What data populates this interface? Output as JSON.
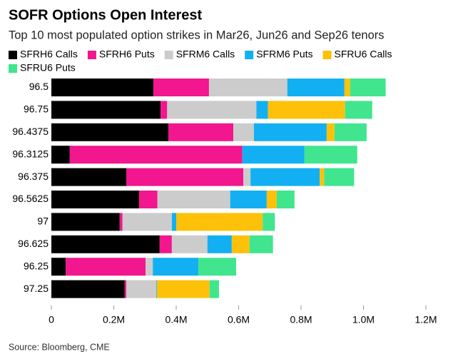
{
  "chart_data": {
    "type": "stacked-bar-horizontal",
    "title": "SOFR Options Open Interest",
    "subtitle": "Top 10 most populated option strikes in Mar26, Jun26 and Sep26 tenors",
    "source": "Source: Bloomberg, CME",
    "categories": [
      "96.5",
      "96.75",
      "96.4375",
      "96.3125",
      "96.375",
      "96.5625",
      "97",
      "96.625",
      "96.25",
      "97.25"
    ],
    "series": [
      {
        "name": "SFRH6 Calls",
        "color": "#000000",
        "values": [
          327000,
          350000,
          375000,
          59000,
          240000,
          281000,
          219000,
          347000,
          46000,
          235000
        ]
      },
      {
        "name": "SFRH6 Puts",
        "color": "#f2168f",
        "values": [
          178000,
          21000,
          208000,
          553000,
          375000,
          59000,
          9000,
          39000,
          256000,
          5000
        ]
      },
      {
        "name": "SFRM6 Calls",
        "color": "#cccccc",
        "values": [
          251000,
          286000,
          66000,
          0,
          23000,
          233000,
          158000,
          114000,
          23000,
          96000
        ]
      },
      {
        "name": "SFRM6 Puts",
        "color": "#12b0f2",
        "values": [
          183000,
          37000,
          233000,
          199000,
          222000,
          117000,
          14000,
          78000,
          146000,
          2000
        ]
      },
      {
        "name": "SFRU6 Calls",
        "color": "#fdc10a",
        "values": [
          18000,
          247000,
          25000,
          0,
          14000,
          32000,
          277000,
          57000,
          0,
          169000
        ]
      },
      {
        "name": "SFRU6 Puts",
        "color": "#40e58d",
        "values": [
          114000,
          87000,
          103000,
          169000,
          96000,
          57000,
          39000,
          75000,
          121000,
          30000
        ]
      }
    ],
    "xlim": [
      0,
      1200000
    ],
    "xticks": [
      0,
      {
        "value": 200000,
        "label": "0.2M"
      },
      {
        "value": 400000,
        "label": "0.4M"
      },
      {
        "value": 600000,
        "label": "0.6M"
      },
      {
        "value": 800000,
        "label": "0.8M"
      },
      {
        "value": 1000000,
        "label": "1.0M"
      },
      {
        "value": 1200000,
        "label": "1.2M"
      }
    ],
    "grid": false
  }
}
